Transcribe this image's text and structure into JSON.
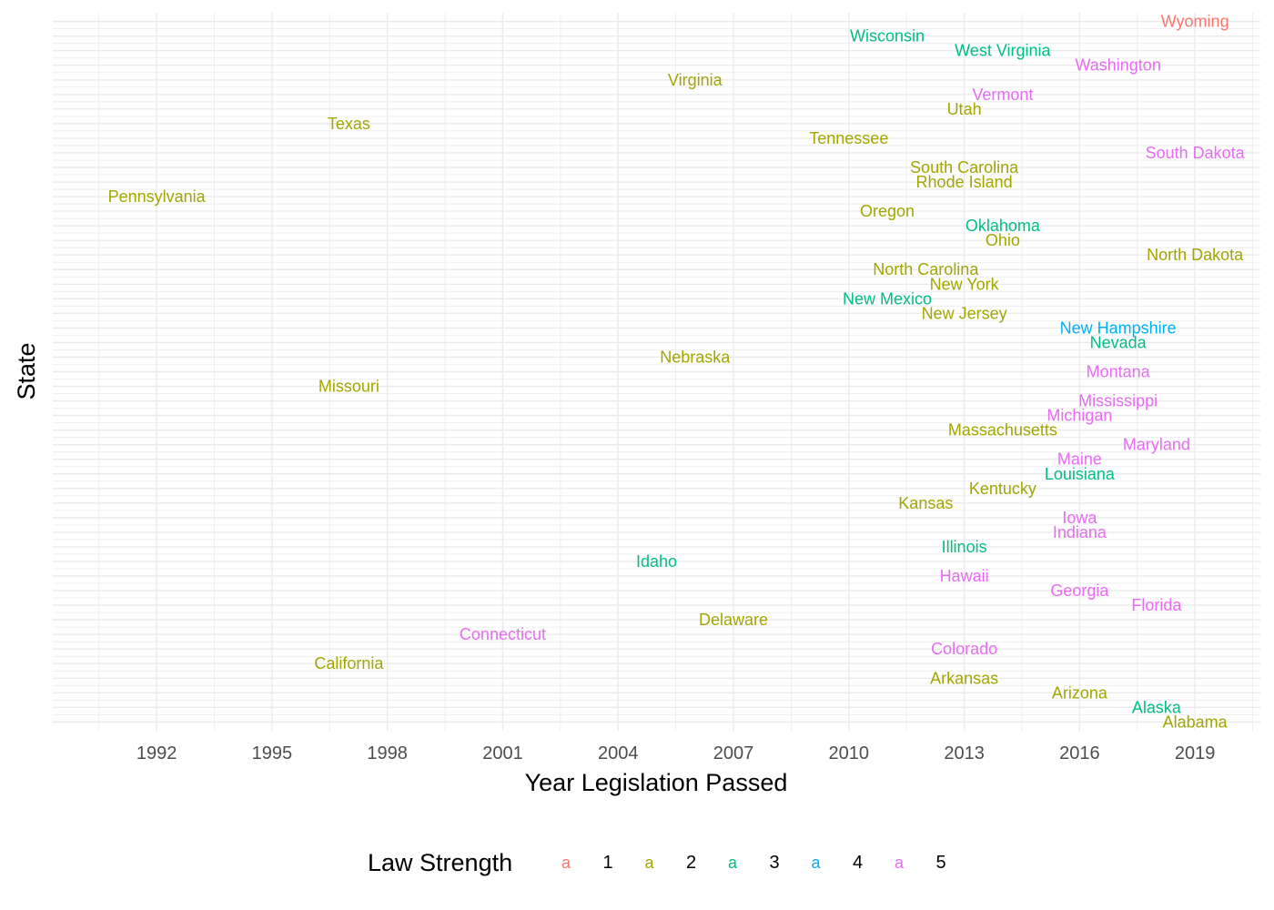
{
  "chart_data": {
    "type": "scatter",
    "xlabel": "Year Legislation Passed",
    "ylabel": "State",
    "xlim": [
      1989.3,
      2020.7
    ],
    "x_ticks": [
      1992,
      1995,
      1998,
      2001,
      2004,
      2007,
      2010,
      2013,
      2016,
      2019
    ],
    "grid": true,
    "legend": {
      "title": "Law Strength",
      "position": "bottom",
      "key_glyph": "a",
      "entries": [
        {
          "label": "1",
          "color": "#F8766D"
        },
        {
          "label": "2",
          "color": "#A3A500"
        },
        {
          "label": "3",
          "color": "#00BF7D"
        },
        {
          "label": "4",
          "color": "#00B0F6"
        },
        {
          "label": "5",
          "color": "#E76BF3"
        }
      ]
    },
    "points": [
      {
        "state": "Alabama",
        "year": 2019,
        "strength": "2"
      },
      {
        "state": "Alaska",
        "year": 2018,
        "strength": "3"
      },
      {
        "state": "Arizona",
        "year": 2016,
        "strength": "2"
      },
      {
        "state": "Arkansas",
        "year": 2013,
        "strength": "2"
      },
      {
        "state": "California",
        "year": 1997,
        "strength": "2"
      },
      {
        "state": "Colorado",
        "year": 2013,
        "strength": "5"
      },
      {
        "state": "Connecticut",
        "year": 2001,
        "strength": "5"
      },
      {
        "state": "Delaware",
        "year": 2007,
        "strength": "2"
      },
      {
        "state": "Florida",
        "year": 2018,
        "strength": "5"
      },
      {
        "state": "Georgia",
        "year": 2016,
        "strength": "5"
      },
      {
        "state": "Hawaii",
        "year": 2013,
        "strength": "5"
      },
      {
        "state": "Idaho",
        "year": 2005,
        "strength": "3"
      },
      {
        "state": "Illinois",
        "year": 2013,
        "strength": "3"
      },
      {
        "state": "Indiana",
        "year": 2016,
        "strength": "5"
      },
      {
        "state": "Iowa",
        "year": 2016,
        "strength": "5"
      },
      {
        "state": "Kansas",
        "year": 2012,
        "strength": "2"
      },
      {
        "state": "Kentucky",
        "year": 2014,
        "strength": "2"
      },
      {
        "state": "Louisiana",
        "year": 2016,
        "strength": "3"
      },
      {
        "state": "Maine",
        "year": 2016,
        "strength": "5"
      },
      {
        "state": "Maryland",
        "year": 2018,
        "strength": "5"
      },
      {
        "state": "Massachusetts",
        "year": 2014,
        "strength": "2"
      },
      {
        "state": "Michigan",
        "year": 2016,
        "strength": "5"
      },
      {
        "state": "Mississippi",
        "year": 2017,
        "strength": "5"
      },
      {
        "state": "Missouri",
        "year": 1997,
        "strength": "2"
      },
      {
        "state": "Montana",
        "year": 2017,
        "strength": "5"
      },
      {
        "state": "Nebraska",
        "year": 2006,
        "strength": "2"
      },
      {
        "state": "Nevada",
        "year": 2017,
        "strength": "3"
      },
      {
        "state": "New Hampshire",
        "year": 2017,
        "strength": "4"
      },
      {
        "state": "New Jersey",
        "year": 2013,
        "strength": "2"
      },
      {
        "state": "New Mexico",
        "year": 2011,
        "strength": "3"
      },
      {
        "state": "New York",
        "year": 2013,
        "strength": "2"
      },
      {
        "state": "North Carolina",
        "year": 2012,
        "strength": "2"
      },
      {
        "state": "North Dakota",
        "year": 2019,
        "strength": "2"
      },
      {
        "state": "Ohio",
        "year": 2014,
        "strength": "2"
      },
      {
        "state": "Oklahoma",
        "year": 2014,
        "strength": "3"
      },
      {
        "state": "Oregon",
        "year": 2011,
        "strength": "2"
      },
      {
        "state": "Pennsylvania",
        "year": 1992,
        "strength": "2"
      },
      {
        "state": "Rhode Island",
        "year": 2013,
        "strength": "2"
      },
      {
        "state": "South Carolina",
        "year": 2013,
        "strength": "2"
      },
      {
        "state": "South Dakota",
        "year": 2019,
        "strength": "5"
      },
      {
        "state": "Tennessee",
        "year": 2010,
        "strength": "2"
      },
      {
        "state": "Texas",
        "year": 1997,
        "strength": "2"
      },
      {
        "state": "Utah",
        "year": 2013,
        "strength": "2"
      },
      {
        "state": "Vermont",
        "year": 2014,
        "strength": "5"
      },
      {
        "state": "Virginia",
        "year": 2006,
        "strength": "2"
      },
      {
        "state": "Washington",
        "year": 2017,
        "strength": "5"
      },
      {
        "state": "West Virginia",
        "year": 2014,
        "strength": "3"
      },
      {
        "state": "Wisconsin",
        "year": 2011,
        "strength": "3"
      },
      {
        "state": "Wyoming",
        "year": 2019,
        "strength": "1"
      }
    ]
  }
}
